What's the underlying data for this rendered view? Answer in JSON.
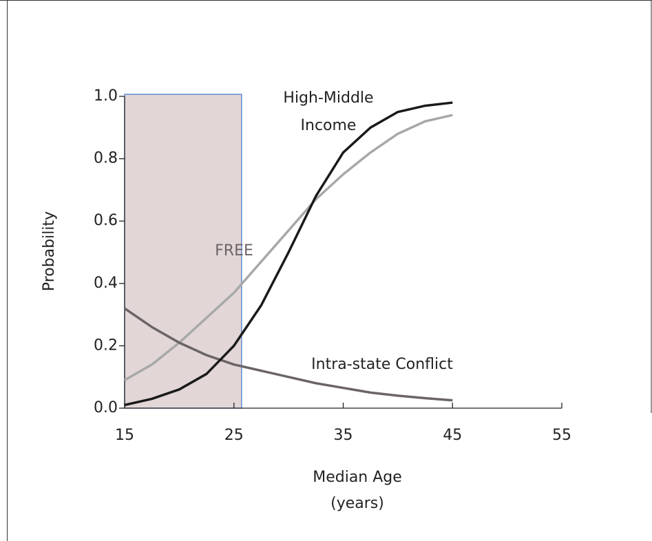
{
  "chart_data": {
    "type": "line",
    "xlabel": "Median Age (years)",
    "ylabel": "Probability",
    "x": [
      15,
      17.5,
      20,
      22.5,
      25,
      27.5,
      30,
      32.5,
      35,
      37.5,
      40,
      42.5,
      45
    ],
    "series": [
      {
        "name": "FREE",
        "color": "#a8a8a8",
        "values": [
          0.09,
          0.14,
          0.21,
          0.29,
          0.37,
          0.47,
          0.57,
          0.67,
          0.75,
          0.82,
          0.88,
          0.92,
          0.94
        ]
      },
      {
        "name": "Intra-state Conflict",
        "color": "#6b6466",
        "values": [
          0.32,
          0.26,
          0.21,
          0.17,
          0.14,
          0.12,
          0.1,
          0.08,
          0.065,
          0.05,
          0.04,
          0.032,
          0.025
        ]
      },
      {
        "name": "High-Middle Income",
        "color": "#1a1a1a",
        "values": [
          0.01,
          0.03,
          0.06,
          0.11,
          0.2,
          0.33,
          0.5,
          0.68,
          0.82,
          0.9,
          0.95,
          0.97,
          0.98
        ]
      }
    ],
    "shaded_region": [
      15,
      25.7
    ],
    "xlim": [
      15,
      55
    ],
    "xticks": [
      15,
      25,
      35,
      45,
      55
    ],
    "ylim": [
      0,
      1
    ],
    "yticks": [
      {
        "value": 0,
        "label": "0.0"
      },
      0.2,
      0.4,
      0.6,
      0.8,
      {
        "value": 1,
        "label": "1.0"
      }
    ]
  }
}
